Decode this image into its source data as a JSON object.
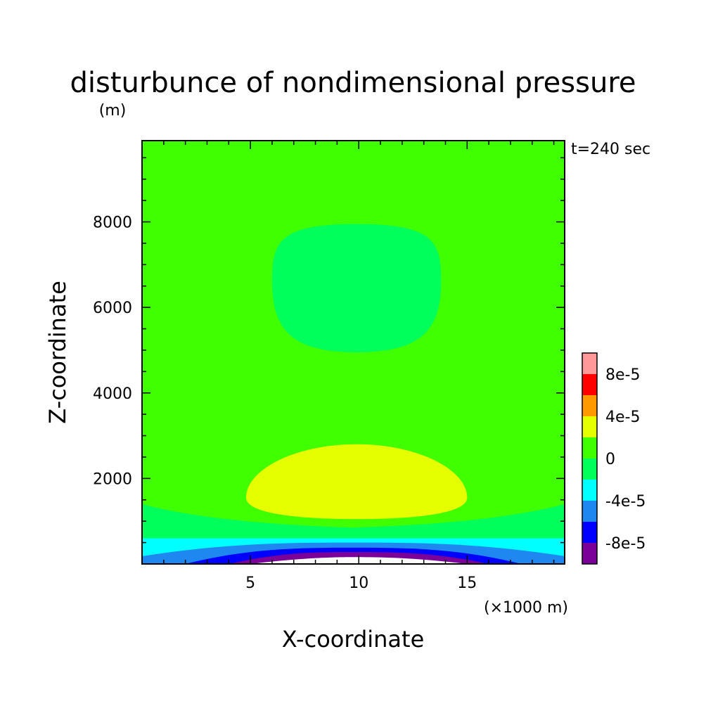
{
  "chart_data": {
    "type": "heatmap",
    "title": "disturbunce of nondimensional pressure",
    "ylabel_unit": "(m)",
    "xlabel": "X-coordinate",
    "ylabel": "Z-coordinate",
    "xunit": "(×1000 m)",
    "time_label": "t=240 sec",
    "xlim": [
      0,
      19.5
    ],
    "ylim": [
      0,
      9900
    ],
    "x_ticks": [
      5,
      10,
      15
    ],
    "x_tick_labels": [
      "5",
      "10",
      "15"
    ],
    "y_ticks": [
      2000,
      4000,
      6000,
      8000
    ],
    "y_tick_labels": [
      "2000",
      "4000",
      "6000",
      "8000"
    ],
    "colorbar": {
      "levels": [
        -0.0001,
        -8e-05,
        -6e-05,
        -4e-05,
        -2e-05,
        0,
        2e-05,
        4e-05,
        6e-05,
        8e-05,
        0.0001
      ],
      "colors": [
        "#7B0099",
        "#0000FF",
        "#1E87F0",
        "#00FFFF",
        "#00FF5A",
        "#3FFF00",
        "#E6FF00",
        "#FF9900",
        "#FF0000",
        "#FF9999"
      ],
      "tick_labels": [
        "-8e-5",
        "-4e-5",
        "0",
        "4e-5",
        "8e-5"
      ],
      "tick_values": [
        -8e-05,
        -4e-05,
        0,
        4e-05,
        8e-05
      ]
    },
    "background_level_color": "#3FFF00",
    "regions": [
      {
        "name": "negative-low-pressure-cell",
        "range": [
          -2e-05,
          0
        ],
        "color": "#00FF5A",
        "x_range": [
          6.0,
          13.8
        ],
        "z_range": [
          4950,
          7950
        ]
      },
      {
        "name": "positive-pressure-cell",
        "range": [
          2e-05,
          4e-05
        ],
        "color": "#E6FF00",
        "x_range": [
          4.8,
          15.0
        ],
        "z_range": [
          1050,
          2800
        ]
      },
      {
        "name": "surface-band-1",
        "range": [
          -2e-05,
          0
        ],
        "color": "#00FF5A",
        "z_edge": 1400,
        "z_center": 850
      },
      {
        "name": "surface-band-2",
        "range": [
          -4e-05,
          -2e-05
        ],
        "color": "#00FFFF",
        "z_edge": 600,
        "z_center": 600
      },
      {
        "name": "surface-band-3",
        "range": [
          -6e-05,
          -4e-05
        ],
        "color": "#1E87F0",
        "z_edge": 180,
        "z_center": 500
      },
      {
        "name": "surface-band-4",
        "range": [
          -8e-05,
          -6e-05
        ],
        "color": "#0000FF",
        "z_center": 380
      },
      {
        "name": "surface-band-5",
        "range": [
          -0.0001,
          -8e-05
        ],
        "color": "#7B0099",
        "z_center": 280
      }
    ]
  }
}
